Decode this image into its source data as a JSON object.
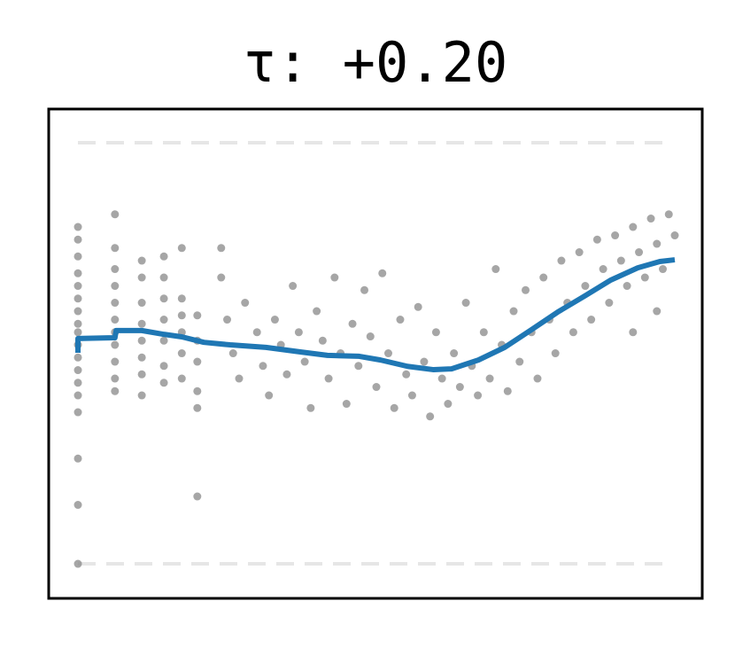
{
  "chart_data": {
    "type": "scatter",
    "title": "τ: +0.20",
    "xlim": [
      -0.049,
      1.046
    ],
    "ylim": [
      -0.082,
      1.08
    ],
    "hlines": [
      0,
      1
    ],
    "series": [
      {
        "type": "scatter",
        "color": "#888888",
        "x": [
          0,
          0,
          0,
          0,
          0,
          0,
          0,
          0,
          0,
          0,
          0,
          0,
          0,
          0,
          0,
          0,
          0,
          0,
          0.062,
          0.062,
          0.062,
          0.062,
          0.062,
          0.062,
          0.062,
          0.062,
          0.062,
          0.062,
          0.062,
          0.107,
          0.107,
          0.107,
          0.107,
          0.107,
          0.107,
          0.107,
          0.107,
          0.144,
          0.144,
          0.144,
          0.144,
          0.144,
          0.144,
          0.144,
          0.174,
          0.174,
          0.174,
          0.174,
          0.174,
          0.174,
          0.2,
          0.2,
          0.2,
          0.2,
          0.2,
          0.2,
          0.24,
          0.24,
          0.25,
          0.26,
          0.27,
          0.28,
          0.3,
          0.31,
          0.32,
          0.33,
          0.34,
          0.35,
          0.36,
          0.37,
          0.38,
          0.39,
          0.4,
          0.41,
          0.42,
          0.43,
          0.44,
          0.45,
          0.46,
          0.47,
          0.48,
          0.49,
          0.5,
          0.51,
          0.52,
          0.53,
          0.54,
          0.55,
          0.56,
          0.57,
          0.58,
          0.59,
          0.6,
          0.61,
          0.62,
          0.63,
          0.64,
          0.65,
          0.66,
          0.67,
          0.68,
          0.69,
          0.7,
          0.71,
          0.72,
          0.73,
          0.74,
          0.75,
          0.76,
          0.77,
          0.78,
          0.79,
          0.8,
          0.81,
          0.82,
          0.83,
          0.84,
          0.85,
          0.86,
          0.87,
          0.88,
          0.89,
          0.9,
          0.91,
          0.92,
          0.93,
          0.94,
          0.95,
          0.96,
          0.97,
          0.98,
          0.99,
          1.0,
          0.97,
          0.93
        ],
        "values": [
          0.8,
          0.77,
          0.73,
          0.69,
          0.66,
          0.63,
          0.6,
          0.57,
          0.55,
          0.52,
          0.49,
          0.46,
          0.43,
          0.4,
          0.36,
          0.25,
          0.14,
          0.0,
          0.83,
          0.75,
          0.7,
          0.66,
          0.62,
          0.58,
          0.55,
          0.52,
          0.48,
          0.44,
          0.41,
          0.72,
          0.68,
          0.62,
          0.57,
          0.53,
          0.49,
          0.45,
          0.4,
          0.73,
          0.68,
          0.63,
          0.58,
          0.53,
          0.47,
          0.43,
          0.75,
          0.63,
          0.59,
          0.55,
          0.5,
          0.44,
          0.59,
          0.53,
          0.48,
          0.41,
          0.37,
          0.16,
          0.75,
          0.68,
          0.58,
          0.5,
          0.44,
          0.62,
          0.55,
          0.47,
          0.4,
          0.58,
          0.52,
          0.45,
          0.66,
          0.55,
          0.48,
          0.37,
          0.6,
          0.53,
          0.44,
          0.68,
          0.5,
          0.38,
          0.57,
          0.47,
          0.65,
          0.54,
          0.42,
          0.69,
          0.5,
          0.37,
          0.58,
          0.45,
          0.4,
          0.61,
          0.48,
          0.35,
          0.55,
          0.44,
          0.38,
          0.5,
          0.42,
          0.62,
          0.47,
          0.4,
          0.55,
          0.44,
          0.7,
          0.52,
          0.41,
          0.6,
          0.48,
          0.65,
          0.55,
          0.44,
          0.68,
          0.58,
          0.5,
          0.72,
          0.62,
          0.55,
          0.74,
          0.66,
          0.58,
          0.77,
          0.7,
          0.62,
          0.78,
          0.72,
          0.66,
          0.8,
          0.74,
          0.68,
          0.82,
          0.76,
          0.7,
          0.83,
          0.78,
          0.6,
          0.55
        ]
      },
      {
        "type": "line",
        "color": "#1f77b4",
        "x": [
          0,
          0,
          0.062,
          0.064,
          0.107,
          0.144,
          0.174,
          0.211,
          0.255,
          0.315,
          0.374,
          0.418,
          0.47,
          0.507,
          0.552,
          0.596,
          0.626,
          0.671,
          0.715,
          0.76,
          0.804,
          0.849,
          0.893,
          0.938,
          0.975,
          1
        ],
        "values": [
          0.501,
          0.535,
          0.537,
          0.554,
          0.554,
          0.545,
          0.539,
          0.526,
          0.52,
          0.514,
          0.503,
          0.495,
          0.493,
          0.484,
          0.469,
          0.461,
          0.463,
          0.484,
          0.514,
          0.556,
          0.598,
          0.636,
          0.674,
          0.703,
          0.718,
          0.722
        ]
      }
    ]
  }
}
